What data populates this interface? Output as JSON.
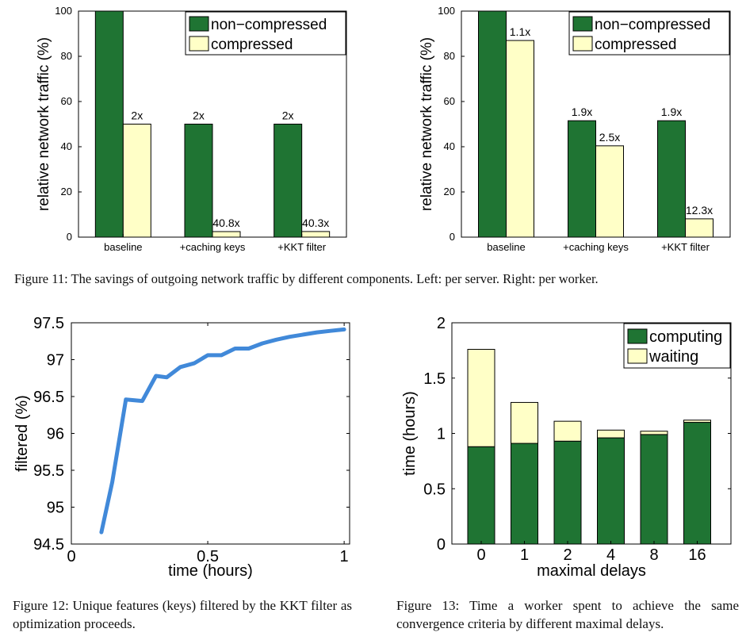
{
  "colors": {
    "dark_green": "#1f7433",
    "light_yellow": "#ffffc7",
    "line_blue": "#4189d9"
  },
  "chart_data": [
    {
      "id": "fig11_left",
      "type": "bar",
      "categories": [
        "baseline",
        "+caching keys",
        "+KKT filter"
      ],
      "series": [
        {
          "name": "non−compressed",
          "values": [
            100,
            50,
            50
          ],
          "labels": [
            "",
            "2x",
            "2x"
          ]
        },
        {
          "name": "compressed",
          "values": [
            50,
            2.45,
            2.48
          ],
          "labels": [
            "2x",
            "40.8x",
            "40.3x"
          ]
        }
      ],
      "ylabel": "relative network traffic (%)",
      "ylim": [
        0,
        100
      ],
      "yticks": [
        "0",
        "20",
        "40",
        "60",
        "80",
        "100"
      ],
      "grid": false,
      "legend": "top-right"
    },
    {
      "id": "fig11_right",
      "type": "bar",
      "categories": [
        "baseline",
        "+caching keys",
        "+KKT filter"
      ],
      "series": [
        {
          "name": "non−compressed",
          "values": [
            100,
            51.5,
            51.5
          ],
          "labels": [
            "",
            "1.9x",
            "1.9x"
          ]
        },
        {
          "name": "compressed",
          "values": [
            87,
            40.4,
            8.1
          ],
          "labels": [
            "1.1x",
            "2.5x",
            "12.3x"
          ]
        }
      ],
      "ylabel": "relative network traffic (%)",
      "ylim": [
        0,
        100
      ],
      "yticks": [
        "0",
        "20",
        "40",
        "60",
        "80",
        "100"
      ],
      "grid": false,
      "legend": "top-right"
    },
    {
      "id": "fig12",
      "type": "line",
      "x": [
        0.11,
        0.15,
        0.2,
        0.26,
        0.31,
        0.35,
        0.4,
        0.45,
        0.5,
        0.55,
        0.6,
        0.65,
        0.7,
        0.75,
        0.8,
        0.85,
        0.9,
        0.95,
        1.0
      ],
      "y": [
        94.66,
        95.34,
        96.46,
        96.44,
        96.78,
        96.76,
        96.9,
        96.95,
        97.06,
        97.06,
        97.15,
        97.15,
        97.22,
        97.27,
        97.31,
        97.34,
        97.37,
        97.39,
        97.41
      ],
      "xlabel": "time (hours)",
      "ylabel": "filtered (%)",
      "xlim": [
        0,
        1.02
      ],
      "ylim": [
        94.5,
        97.5
      ],
      "xticks": [
        {
          "v": 0,
          "t": "0"
        },
        {
          "v": 0.5,
          "t": "0.5"
        },
        {
          "v": 1,
          "t": "1"
        }
      ],
      "yticks": [
        {
          "v": 94.5,
          "t": "94.5"
        },
        {
          "v": 95,
          "t": "95"
        },
        {
          "v": 95.5,
          "t": "95.5"
        },
        {
          "v": 96,
          "t": "96"
        },
        {
          "v": 96.5,
          "t": "96.5"
        },
        {
          "v": 97,
          "t": "97"
        },
        {
          "v": 97.5,
          "t": "97.5"
        }
      ],
      "grid": false
    },
    {
      "id": "fig13",
      "type": "bar",
      "stacked": true,
      "categories": [
        "0",
        "1",
        "2",
        "4",
        "8",
        "16"
      ],
      "series": [
        {
          "name": "computing",
          "values": [
            0.88,
            0.91,
            0.93,
            0.96,
            0.99,
            1.1
          ]
        },
        {
          "name": "waiting",
          "values": [
            0.88,
            0.37,
            0.18,
            0.07,
            0.03,
            0.02
          ]
        }
      ],
      "xlabel": "maximal delays",
      "ylabel": "time (hours)",
      "ylim": [
        0,
        2
      ],
      "yticks": [
        {
          "v": 0,
          "t": "0"
        },
        {
          "v": 0.5,
          "t": "0.5"
        },
        {
          "v": 1,
          "t": "1"
        },
        {
          "v": 1.5,
          "t": "1.5"
        },
        {
          "v": 2,
          "t": "2"
        }
      ],
      "grid": false,
      "legend": "top-right"
    }
  ],
  "captions": {
    "fig11": "Figure 11: The savings of outgoing network traffic by different components. Left: per server. Right: per worker.",
    "fig12": "Figure 12: Unique features (keys) filtered by the KKT filter as optimization proceeds.",
    "fig13": "Figure 13: Time a worker spent to achieve the same convergence criteria by different maximal delays."
  }
}
